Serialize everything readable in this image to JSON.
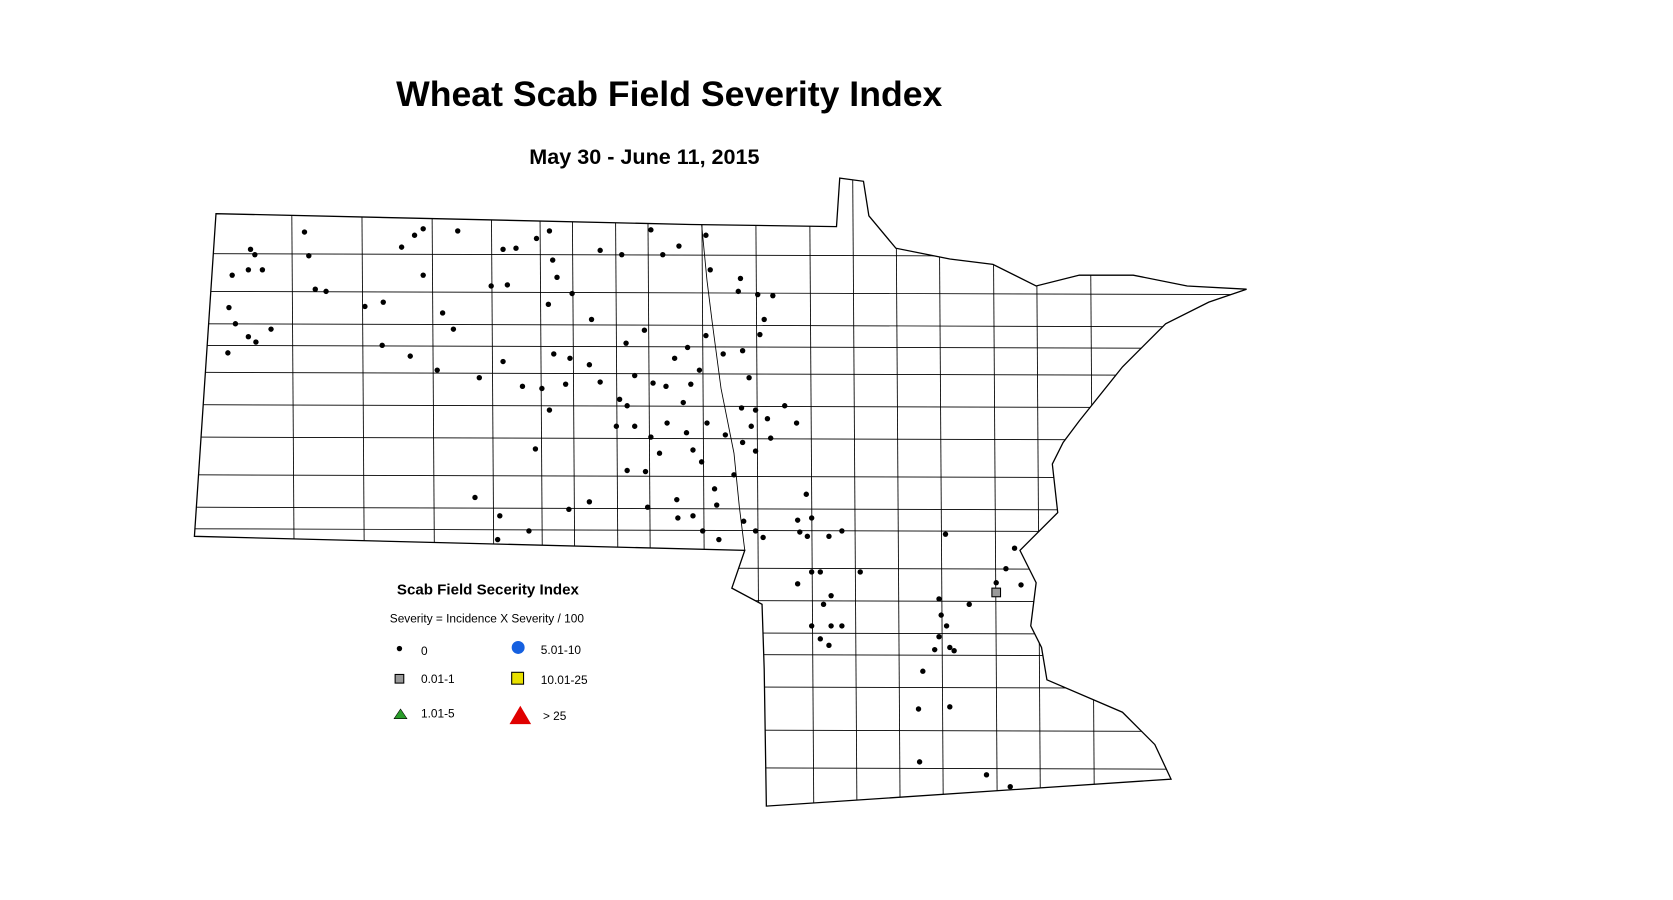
{
  "header": {
    "title": "Wheat Scab Field Severity Index",
    "subtitle": "May 30 - June 11, 2015"
  },
  "legend": {
    "title": "Scab Field Secerity Index",
    "formula": "Severity = Incidence X Severity / 100",
    "items": [
      "0",
      "0.01-1",
      "1.01-5",
      "5.01-10",
      "10.01-25",
      "> 25"
    ]
  }
}
